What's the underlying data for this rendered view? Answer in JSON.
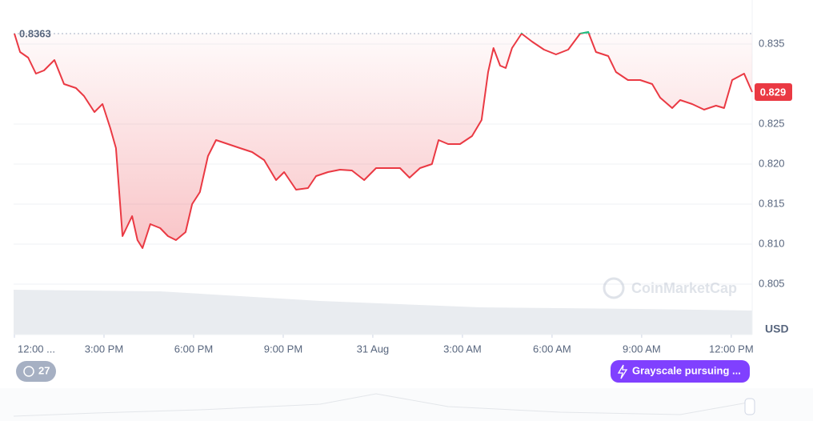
{
  "chart_data": {
    "type": "line",
    "currency": "USD",
    "watermark": "CoinMarketCap",
    "event_count": "27",
    "event_button": "Grayscale pursuing ...",
    "color": "#ea3943",
    "above_color": "#16c784",
    "reference": 0.8363,
    "last_label": "0.829",
    "grid": true,
    "xlim": [
      0,
      24.7
    ],
    "ylim": [
      0.7987,
      0.8405
    ],
    "xticks": [
      {
        "value": 0,
        "label": "12:00 ..."
      },
      {
        "value": 3,
        "label": "3:00 PM"
      },
      {
        "value": 6,
        "label": "6:00 PM"
      },
      {
        "value": 9,
        "label": "9:00 PM"
      },
      {
        "value": 12,
        "label": "31 Aug"
      },
      {
        "value": 15,
        "label": "3:00 AM"
      },
      {
        "value": 18,
        "label": "6:00 AM"
      },
      {
        "value": 21,
        "label": "9:00 AM"
      },
      {
        "value": 24,
        "label": "12:00 PM"
      }
    ],
    "yticks": [
      {
        "value": 0.805,
        "label": "0.805"
      },
      {
        "value": 0.81,
        "label": "0.810"
      },
      {
        "value": 0.815,
        "label": "0.815"
      },
      {
        "value": 0.82,
        "label": "0.820"
      },
      {
        "value": 0.825,
        "label": "0.825"
      },
      {
        "value": 0.835,
        "label": "0.835"
      }
    ],
    "x": [
      0,
      0.19,
      0.46,
      0.72,
      0.99,
      1.34,
      1.66,
      2.06,
      2.33,
      2.68,
      2.95,
      3.21,
      3.4,
      3.62,
      3.94,
      4.12,
      4.29,
      4.55,
      4.88,
      5.14,
      5.41,
      5.73,
      5.95,
      6.21,
      6.48,
      6.75,
      7.15,
      7.55,
      7.96,
      8.36,
      8.76,
      9.03,
      9.43,
      9.83,
      10.1,
      10.5,
      10.9,
      11.3,
      11.71,
      12.11,
      12.51,
      12.91,
      13.23,
      13.58,
      13.98,
      14.2,
      14.52,
      14.92,
      15.32,
      15.64,
      15.86,
      16.04,
      16.26,
      16.45,
      16.66,
      16.98,
      17.33,
      17.73,
      18.13,
      18.54,
      18.94,
      19.21,
      19.47,
      19.88,
      20.14,
      20.54,
      20.95,
      21.35,
      21.62,
      22.02,
      22.29,
      22.69,
      23.09,
      23.49,
      23.76,
      24.03,
      24.43,
      24.7
    ],
    "values": [
      0.8363,
      0.834,
      0.8333,
      0.8313,
      0.8317,
      0.833,
      0.83,
      0.8295,
      0.8285,
      0.8265,
      0.8275,
      0.8245,
      0.822,
      0.811,
      0.8135,
      0.8105,
      0.8095,
      0.8125,
      0.812,
      0.811,
      0.8105,
      0.8115,
      0.815,
      0.8165,
      0.821,
      0.823,
      0.8225,
      0.822,
      0.8215,
      0.8205,
      0.818,
      0.819,
      0.8168,
      0.817,
      0.8185,
      0.819,
      0.8193,
      0.8192,
      0.818,
      0.8195,
      0.8195,
      0.8195,
      0.8183,
      0.8195,
      0.82,
      0.823,
      0.8225,
      0.8225,
      0.8235,
      0.8255,
      0.8315,
      0.8345,
      0.8323,
      0.832,
      0.8345,
      0.8363,
      0.8353,
      0.8343,
      0.8337,
      0.8343,
      0.8363,
      0.8365,
      0.834,
      0.8335,
      0.8315,
      0.8305,
      0.8305,
      0.83,
      0.8283,
      0.827,
      0.828,
      0.8275,
      0.8268,
      0.8273,
      0.827,
      0.8305,
      0.8313,
      0.829
    ]
  }
}
